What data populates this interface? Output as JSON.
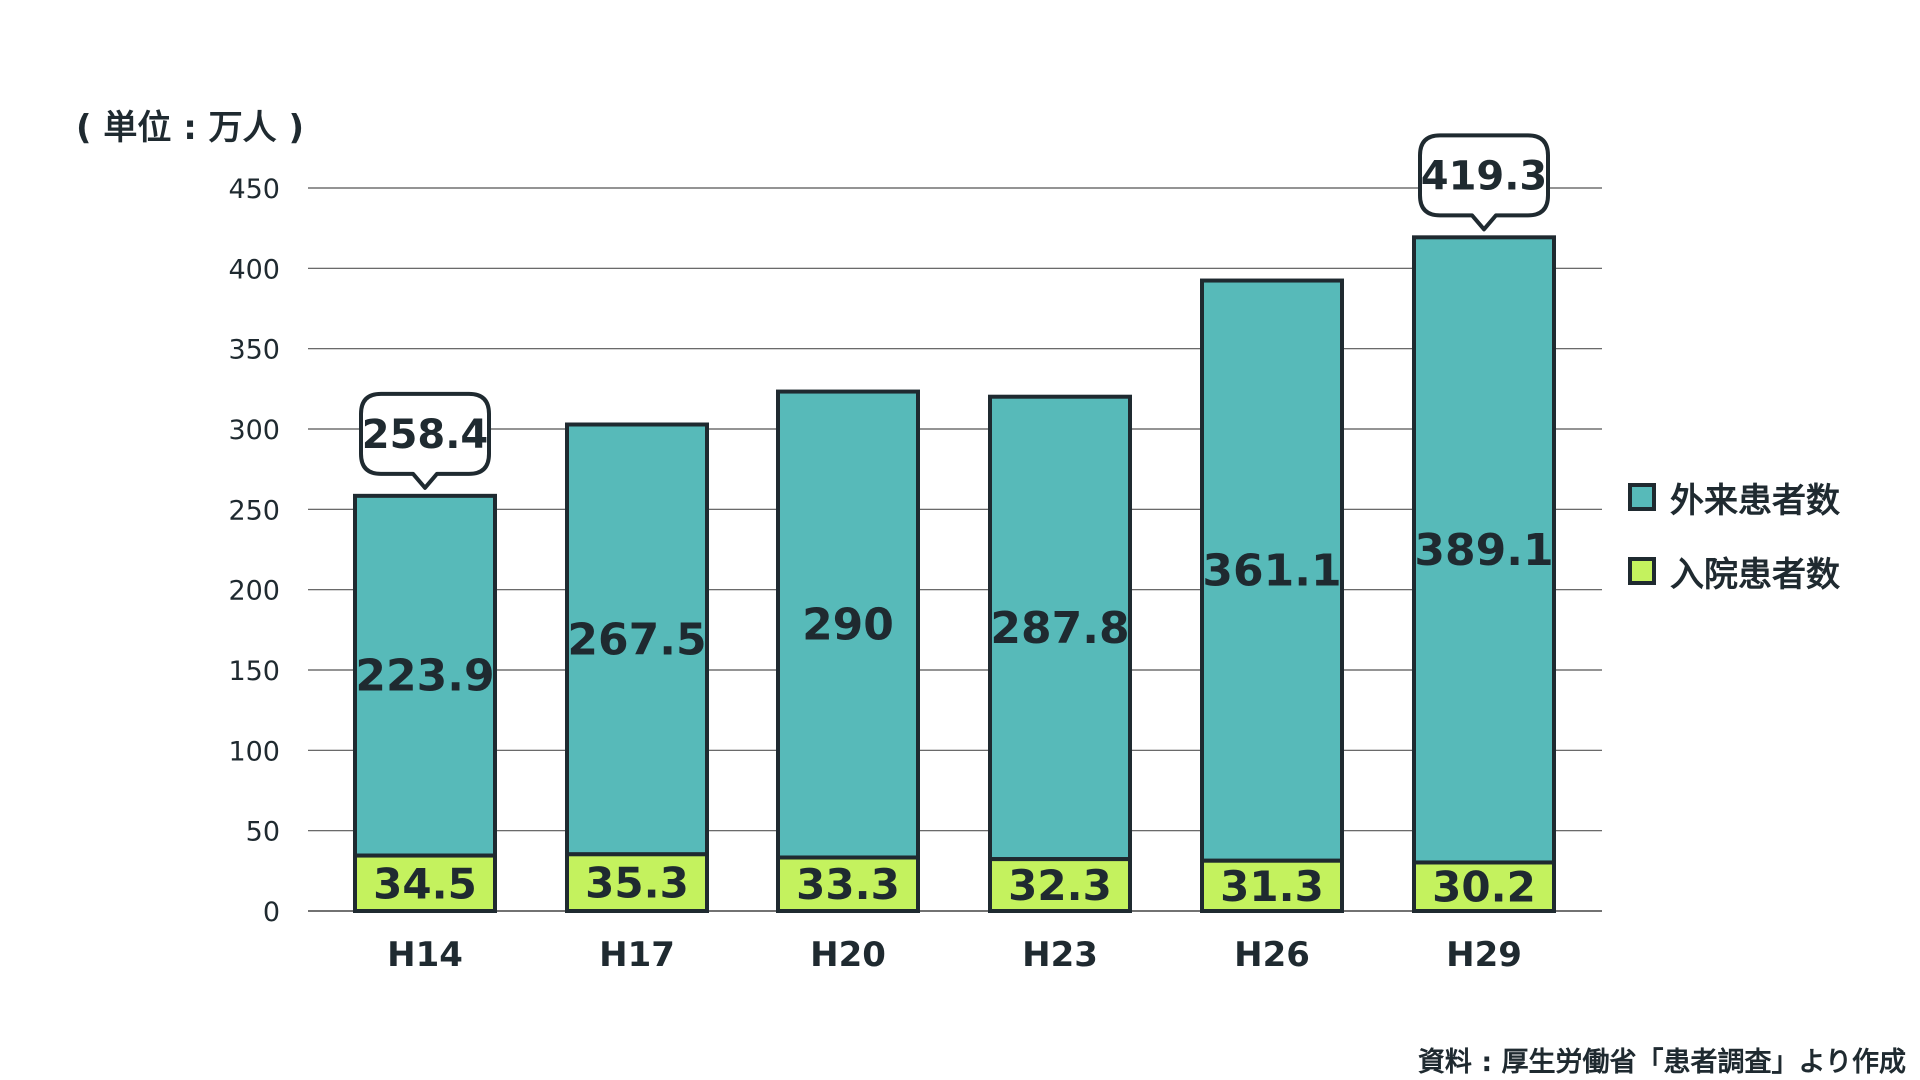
{
  "chart_data": {
    "type": "bar",
    "stacked": true,
    "unit_label": "( 単位 : 万人 )",
    "categories": [
      "H14",
      "H17",
      "H20",
      "H23",
      "H26",
      "H29"
    ],
    "series": [
      {
        "name": "入院患者数",
        "values": [
          34.5,
          35.3,
          33.3,
          32.3,
          31.3,
          30.2
        ],
        "labels": [
          "34.5",
          "35.3",
          "33.3",
          "32.3",
          "31.3",
          "30.2"
        ],
        "color": "#c4f25e"
      },
      {
        "name": "外来患者数",
        "values": [
          223.9,
          267.5,
          290,
          287.8,
          361.1,
          389.1
        ],
        "labels": [
          "223.9",
          "267.5",
          "290",
          "287.8",
          "361.1",
          "389.1"
        ],
        "color": "#57bab9"
      }
    ],
    "totals": [
      {
        "category_index": 0,
        "value": 258.4,
        "label": "258.4"
      },
      {
        "category_index": 5,
        "value": 419.3,
        "label": "419.3"
      }
    ],
    "yticks": [
      "0",
      "50",
      "100",
      "150",
      "200",
      "250",
      "300",
      "350",
      "400",
      "450"
    ],
    "ylim": [
      0,
      450
    ],
    "grid": true,
    "legend_position": "right",
    "source": "資料 : 厚生労働省「患者調査」より作成"
  }
}
